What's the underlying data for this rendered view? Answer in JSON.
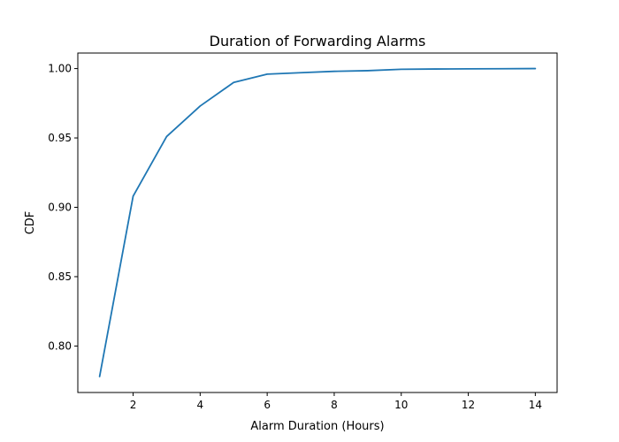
{
  "chart_data": {
    "type": "line",
    "title": "Duration of Forwarding Alarms",
    "xlabel": "Alarm Duration (Hours)",
    "ylabel": "CDF",
    "xlim": [
      0.35,
      14.65
    ],
    "ylim": [
      0.7665,
      1.0112
    ],
    "xticks": [
      2,
      4,
      6,
      8,
      10,
      12,
      14
    ],
    "yticks": [
      0.8,
      0.85,
      0.9,
      0.95,
      1.0
    ],
    "grid": false,
    "series": [
      {
        "color": "#1f77b4",
        "x": [
          1,
          2,
          3,
          4,
          5,
          6,
          7,
          8,
          9,
          10,
          11,
          12,
          13,
          14
        ],
        "y": [
          0.778,
          0.908,
          0.951,
          0.973,
          0.99,
          0.996,
          0.997,
          0.998,
          0.9985,
          0.9995,
          0.9997,
          0.9998,
          0.9999,
          1.0
        ]
      }
    ]
  }
}
